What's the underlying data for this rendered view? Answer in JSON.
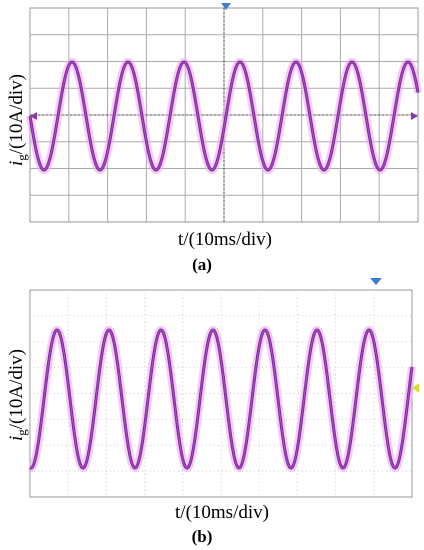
{
  "panels": [
    {
      "y_label": {
        "symbol": "i",
        "subscript": "g",
        "rest": "/(10A/div)"
      },
      "x_label": "t/(10ms/div)",
      "caption": "(a)"
    },
    {
      "y_label": {
        "symbol": "i",
        "subscript": "g",
        "rest": "/(10A/div)"
      },
      "x_label": "t/(10ms/div)",
      "caption": "(b)"
    }
  ]
}
